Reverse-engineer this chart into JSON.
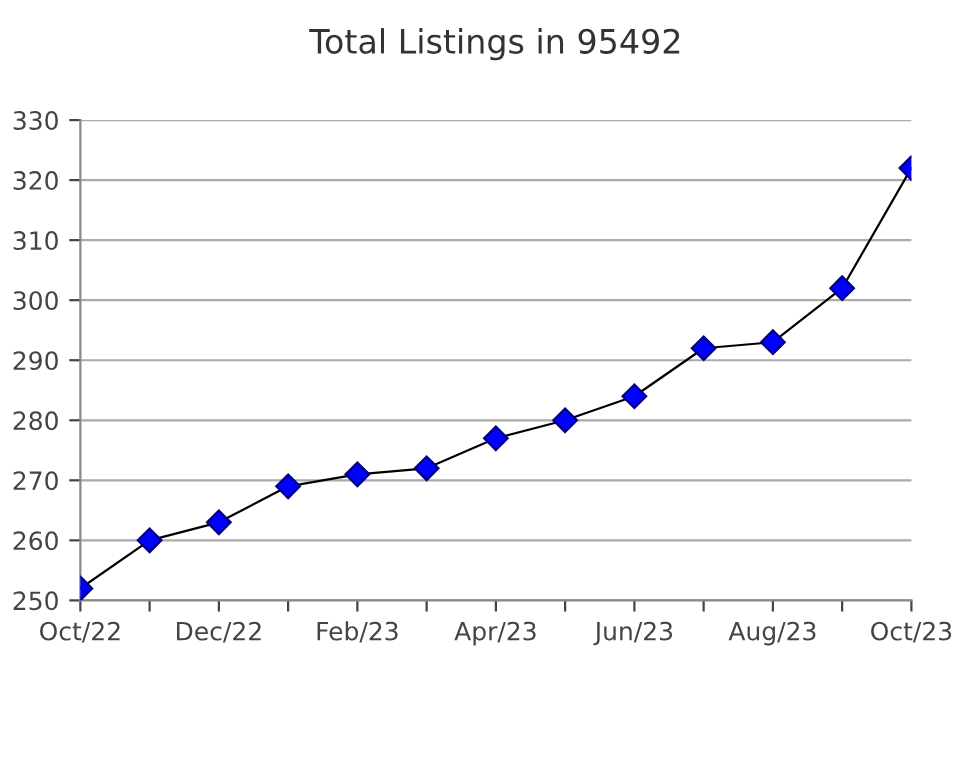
{
  "chart_data": {
    "type": "line",
    "title": "Total Listings in 95492",
    "categories": [
      "Oct/22",
      null,
      "Dec/22",
      null,
      "Feb/23",
      null,
      "Apr/23",
      null,
      "Jun/23",
      null,
      "Aug/23",
      null,
      "Oct/23"
    ],
    "series": [
      {
        "color": "#0000ff",
        "values": [
          252,
          260,
          263,
          269,
          271,
          272,
          277,
          280,
          284,
          292,
          293,
          302,
          322
        ]
      }
    ],
    "ylim": [
      250,
      330
    ],
    "yticks": [
      250,
      260,
      270,
      280,
      290,
      300,
      310,
      320,
      330
    ],
    "grid": "y",
    "marker": "diamond",
    "line_style": "solid"
  }
}
